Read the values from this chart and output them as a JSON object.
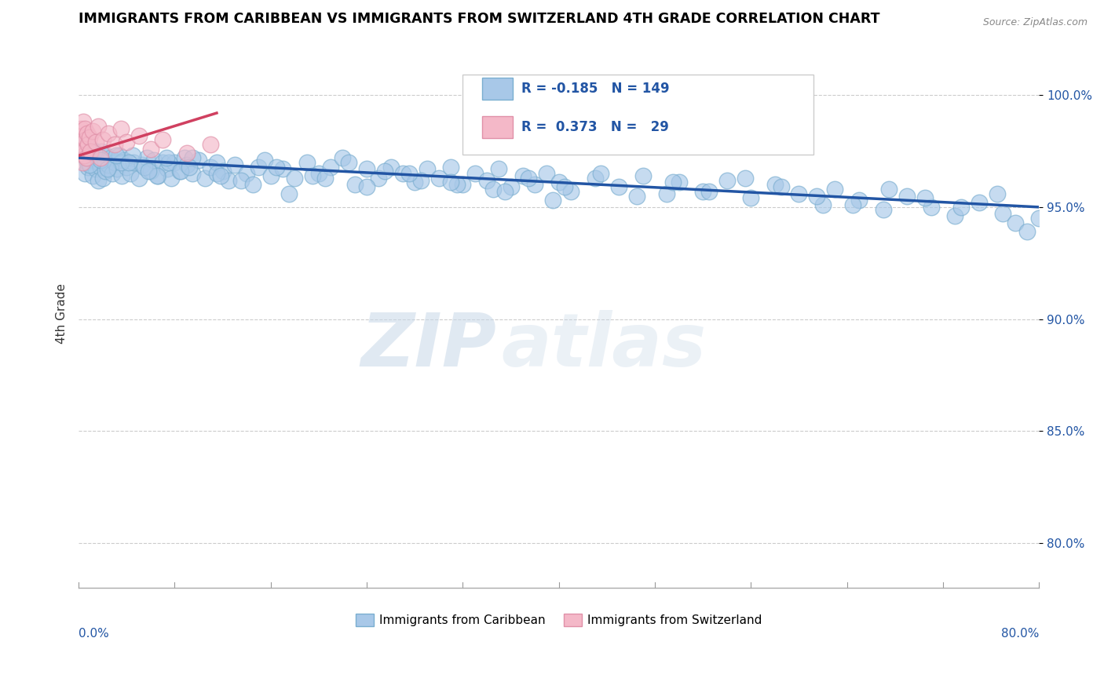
{
  "title": "IMMIGRANTS FROM CARIBBEAN VS IMMIGRANTS FROM SWITZERLAND 4TH GRADE CORRELATION CHART",
  "source_text": "Source: ZipAtlas.com",
  "ylabel": "4th Grade",
  "y_ticks": [
    80.0,
    85.0,
    90.0,
    95.0,
    100.0
  ],
  "x_range": [
    0.0,
    80.0
  ],
  "y_range": [
    78.0,
    102.5
  ],
  "watermark_zip": "ZIP",
  "watermark_atlas": "atlas",
  "legend_r_blue": "-0.185",
  "legend_n_blue": "149",
  "legend_r_pink": "0.373",
  "legend_n_pink": "29",
  "blue_color": "#a8c8e8",
  "blue_edge_color": "#7aaed0",
  "blue_line_color": "#2255a4",
  "pink_color": "#f4b8c8",
  "pink_edge_color": "#e090a8",
  "pink_line_color": "#d04060",
  "blue_scatter_x": [
    0.2,
    0.4,
    0.5,
    0.6,
    0.7,
    0.8,
    0.9,
    1.0,
    1.1,
    1.2,
    1.3,
    1.4,
    1.5,
    1.6,
    1.7,
    1.8,
    1.9,
    2.0,
    2.1,
    2.2,
    2.3,
    2.5,
    2.7,
    2.8,
    3.0,
    3.2,
    3.4,
    3.6,
    3.8,
    4.0,
    4.3,
    4.6,
    5.0,
    5.3,
    5.7,
    6.0,
    6.3,
    6.6,
    7.0,
    7.4,
    7.7,
    8.0,
    8.4,
    8.8,
    9.0,
    9.5,
    10.0,
    10.5,
    11.0,
    11.5,
    12.0,
    12.5,
    13.0,
    14.0,
    15.0,
    15.5,
    16.0,
    17.0,
    18.0,
    19.0,
    20.0,
    21.0,
    22.0,
    23.0,
    24.0,
    25.0,
    26.0,
    27.0,
    28.0,
    29.0,
    30.0,
    31.0,
    32.0,
    33.0,
    34.0,
    35.0,
    36.0,
    37.0,
    38.0,
    39.0,
    40.0,
    41.0,
    43.0,
    45.0,
    47.0,
    49.0,
    50.0,
    52.0,
    54.0,
    56.0,
    58.0,
    60.0,
    62.0,
    63.0,
    65.0,
    67.0,
    69.0,
    71.0,
    73.0,
    75.0,
    77.0,
    78.0,
    79.0,
    80.0,
    3.5,
    4.5,
    5.5,
    6.5,
    7.5,
    8.5,
    9.5,
    11.5,
    13.5,
    16.5,
    19.5,
    22.5,
    25.5,
    28.5,
    31.5,
    34.5,
    37.5,
    40.5,
    43.5,
    46.5,
    49.5,
    52.5,
    55.5,
    58.5,
    61.5,
    64.5,
    67.5,
    70.5,
    73.5,
    76.5,
    0.3,
    0.6,
    0.9,
    1.3,
    1.8,
    2.4,
    3.1,
    4.2,
    5.8,
    7.3,
    9.2,
    11.8,
    14.5,
    17.5,
    20.5,
    24.0,
    27.5,
    31.0,
    35.5,
    39.5
  ],
  "blue_scatter_y": [
    97.5,
    97.8,
    96.5,
    97.2,
    97.0,
    96.8,
    97.3,
    96.9,
    97.6,
    96.4,
    97.1,
    96.7,
    97.4,
    96.2,
    97.0,
    96.8,
    97.5,
    96.3,
    97.1,
    96.6,
    97.3,
    96.9,
    97.2,
    96.5,
    97.0,
    96.7,
    97.3,
    96.4,
    97.1,
    96.8,
    96.5,
    97.0,
    96.3,
    96.9,
    97.2,
    96.6,
    97.1,
    96.4,
    97.0,
    96.7,
    96.3,
    97.0,
    96.6,
    97.2,
    96.9,
    96.5,
    97.1,
    96.3,
    96.8,
    97.0,
    96.6,
    96.2,
    96.9,
    96.5,
    96.8,
    97.1,
    96.4,
    96.7,
    96.3,
    97.0,
    96.5,
    96.8,
    97.2,
    96.0,
    96.7,
    96.3,
    96.8,
    96.5,
    96.1,
    96.7,
    96.3,
    96.8,
    96.0,
    96.5,
    96.2,
    96.7,
    95.9,
    96.4,
    96.0,
    96.5,
    96.1,
    95.7,
    96.3,
    95.9,
    96.4,
    95.6,
    96.1,
    95.7,
    96.2,
    95.4,
    96.0,
    95.6,
    95.1,
    95.8,
    95.3,
    94.9,
    95.5,
    95.0,
    94.6,
    95.2,
    94.7,
    94.3,
    93.9,
    94.5,
    97.0,
    97.3,
    96.8,
    96.4,
    97.0,
    96.6,
    97.2,
    96.5,
    96.2,
    96.8,
    96.4,
    97.0,
    96.6,
    96.2,
    96.0,
    95.8,
    96.3,
    95.9,
    96.5,
    95.5,
    96.1,
    95.7,
    96.3,
    95.9,
    95.5,
    95.1,
    95.8,
    95.4,
    95.0,
    95.6,
    97.8,
    97.3,
    96.9,
    97.5,
    97.1,
    96.7,
    97.3,
    97.0,
    96.6,
    97.2,
    96.8,
    96.4,
    96.0,
    95.6,
    96.3,
    95.9,
    96.5,
    96.1,
    95.7,
    95.3
  ],
  "pink_scatter_x": [
    0.15,
    0.2,
    0.25,
    0.3,
    0.35,
    0.4,
    0.45,
    0.5,
    0.55,
    0.6,
    0.65,
    0.7,
    0.8,
    0.9,
    1.0,
    1.2,
    1.4,
    1.6,
    1.8,
    2.0,
    2.5,
    3.0,
    3.5,
    4.0,
    5.0,
    6.0,
    7.0,
    9.0,
    11.0
  ],
  "pink_scatter_y": [
    97.5,
    98.5,
    97.8,
    98.2,
    97.0,
    98.8,
    97.3,
    98.5,
    97.6,
    98.0,
    97.2,
    98.3,
    97.8,
    98.1,
    97.5,
    98.4,
    97.9,
    98.6,
    97.2,
    98.0,
    98.3,
    97.8,
    98.5,
    97.9,
    98.2,
    97.6,
    98.0,
    97.4,
    97.8
  ],
  "blue_trend_x": [
    0.0,
    80.0
  ],
  "blue_trend_y": [
    97.2,
    95.0
  ],
  "pink_trend_x": [
    0.0,
    11.5
  ],
  "pink_trend_y": [
    97.3,
    99.2
  ]
}
